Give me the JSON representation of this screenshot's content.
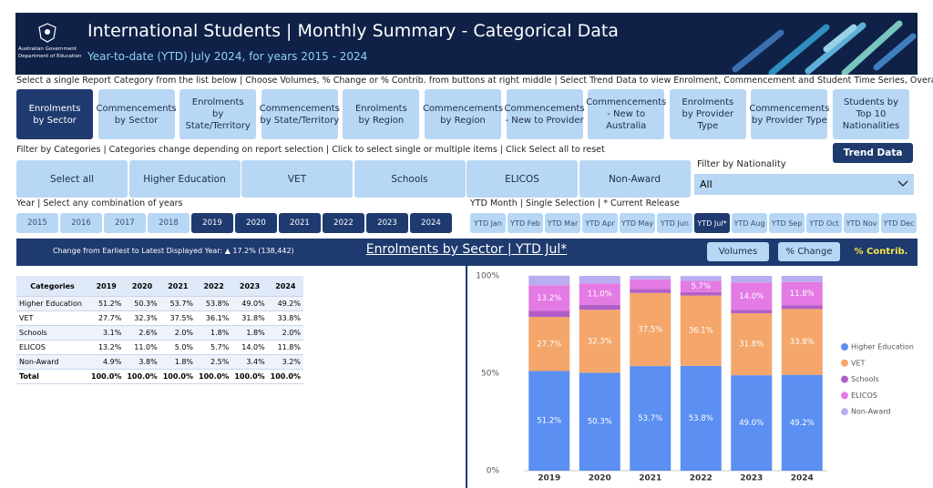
{
  "header": {
    "logo_line1": "Australian Government",
    "logo_line2": "Department of Education",
    "title": "International Students | Monthly Summary - Categorical Data",
    "subtitle": "Year-to-date (YTD) July 2024, for years 2015 - 2024"
  },
  "instructions": "Select a single Report Category from the list below | Choose Volumes, % Change or % Contrib. from buttons at right middle | Select Trend Data to view Enrolment, Commencement and Student Time Series, Overall or by Nationality",
  "report_buttons": [
    {
      "label": "Enrolments by Sector",
      "selected": true
    },
    {
      "label": "Commencements by Sector",
      "selected": false
    },
    {
      "label": "Enrolments by State/Territory",
      "selected": false
    },
    {
      "label": "Commencements by State/Territory",
      "selected": false
    },
    {
      "label": "Enrolments by Region",
      "selected": false
    },
    {
      "label": "Commencements by Region",
      "selected": false
    },
    {
      "label": "Commencements - New to Provider",
      "selected": false
    },
    {
      "label": "Commencements - New to Australia",
      "selected": false
    },
    {
      "label": "Enrolments by Provider Type",
      "selected": false
    },
    {
      "label": "Commencements by Provider Type",
      "selected": false
    },
    {
      "label": "Students by Top 10 Nationalities",
      "selected": false
    }
  ],
  "trend_button": "Trend Data",
  "filter_instructions": "Filter by Categories | Categories change depending on report selection | Click to select single or multiple items | Click Select all to reset",
  "filter_buttons": [
    "Select all",
    "Higher Education",
    "VET",
    "Schools",
    "ELICOS",
    "Non-Award"
  ],
  "nationality_label": "Filter by Nationality",
  "nationality_value": "All",
  "year_label": "Year | Select any combination of years",
  "years": [
    {
      "label": "2015",
      "selected": false
    },
    {
      "label": "2016",
      "selected": false
    },
    {
      "label": "2017",
      "selected": false
    },
    {
      "label": "2018",
      "selected": false
    },
    {
      "label": "2019",
      "selected": true
    },
    {
      "label": "2020",
      "selected": true
    },
    {
      "label": "2021",
      "selected": true
    },
    {
      "label": "2022",
      "selected": true
    },
    {
      "label": "2023",
      "selected": true
    },
    {
      "label": "2024",
      "selected": true
    }
  ],
  "month_label": "YTD Month | Single Selection | * Current Release",
  "months": [
    {
      "label": "YTD Jan",
      "selected": false
    },
    {
      "label": "YTD Feb",
      "selected": false
    },
    {
      "label": "YTD Mar",
      "selected": false
    },
    {
      "label": "YTD Apr",
      "selected": false
    },
    {
      "label": "YTD May",
      "selected": false
    },
    {
      "label": "YTD Jun",
      "selected": false
    },
    {
      "label": "YTD Jul*",
      "selected": true
    },
    {
      "label": "YTD Aug",
      "selected": false
    },
    {
      "label": "YTD Sep",
      "selected": false
    },
    {
      "label": "YTD Oct",
      "selected": false
    },
    {
      "label": "YTD Nov",
      "selected": false
    },
    {
      "label": "YTD Dec",
      "selected": false
    }
  ],
  "banner": {
    "change_text": "Change from Earliest to Latest Displayed Year: ▲ 17.2% (138,442)",
    "title": "Enrolments by Sector | YTD Jul*",
    "buttons": [
      "Volumes",
      "% Change"
    ],
    "active_view": "% Contrib."
  },
  "table": {
    "header": [
      "Categories",
      "2019",
      "2020",
      "2021",
      "2022",
      "2023",
      "2024"
    ],
    "rows": [
      [
        "Higher Education",
        "51.2%",
        "50.3%",
        "53.7%",
        "53.8%",
        "49.0%",
        "49.2%"
      ],
      [
        "VET",
        "27.7%",
        "32.3%",
        "37.5%",
        "36.1%",
        "31.8%",
        "33.8%"
      ],
      [
        "Schools",
        "3.1%",
        "2.6%",
        "2.0%",
        "1.8%",
        "1.8%",
        "2.0%"
      ],
      [
        "ELICOS",
        "13.2%",
        "11.0%",
        "5.0%",
        "5.7%",
        "14.0%",
        "11.8%"
      ],
      [
        "Non-Award",
        "4.9%",
        "3.8%",
        "1.8%",
        "2.5%",
        "3.4%",
        "3.2%"
      ]
    ],
    "total": [
      "Total",
      "100.0%",
      "100.0%",
      "100.0%",
      "100.0%",
      "100.0%",
      "100.0%"
    ]
  },
  "chart_data": {
    "type": "stacked_bar",
    "categories": [
      "2019",
      "2020",
      "2021",
      "2022",
      "2023",
      "2024"
    ],
    "ylim": [
      0,
      100
    ],
    "yticks": [
      {
        "value": 0,
        "label": "0%"
      },
      {
        "value": 50,
        "label": "50%"
      },
      {
        "value": 100,
        "label": "100%"
      }
    ],
    "series": [
      {
        "name": "Higher Education",
        "color": "#5b8ff2",
        "values": [
          51.2,
          50.3,
          53.7,
          53.8,
          49.0,
          49.2
        ],
        "value_labels": [
          "51.2%",
          "50.3%",
          "53.7%",
          "53.8%",
          "49.0%",
          "49.2%"
        ]
      },
      {
        "name": "VET",
        "color": "#f4a66b",
        "values": [
          27.7,
          32.3,
          37.5,
          36.1,
          31.8,
          33.8
        ],
        "value_labels": [
          "27.7%",
          "32.3%",
          "37.5%",
          "36.1%",
          "31.8%",
          "33.8%"
        ]
      },
      {
        "name": "Schools",
        "color": "#b35ec8",
        "values": [
          3.1,
          2.6,
          2.0,
          1.8,
          1.8,
          2.0
        ]
      },
      {
        "name": "ELICOS",
        "color": "#e47ae3",
        "values": [
          13.2,
          11.0,
          5.0,
          5.7,
          14.0,
          11.8
        ],
        "value_labels": [
          "13.2%",
          "11.0%",
          null,
          "5.7%",
          "14.0%",
          "11.8%"
        ]
      },
      {
        "name": "Non-Award",
        "color": "#b9adf2",
        "values": [
          4.9,
          3.8,
          1.8,
          2.5,
          3.4,
          3.2
        ]
      }
    ],
    "legend": "right"
  }
}
